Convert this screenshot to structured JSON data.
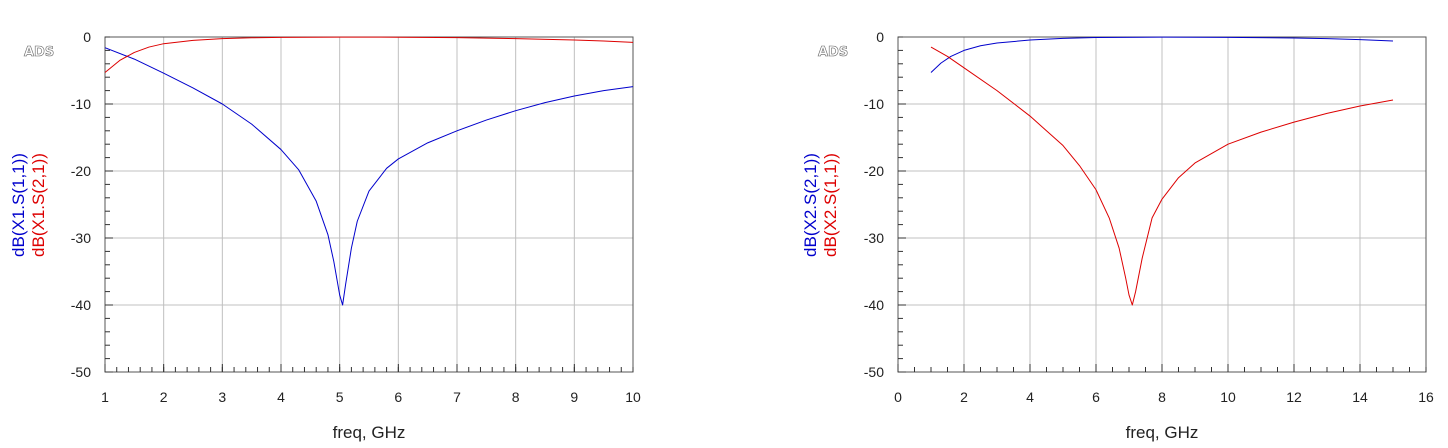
{
  "chart_data": [
    {
      "type": "line",
      "logo": "ADS",
      "xlabel": "freq, GHz",
      "xlim": [
        1,
        10
      ],
      "ylim": [
        -50,
        0
      ],
      "xticks": [
        1,
        2,
        3,
        4,
        5,
        6,
        7,
        8,
        9,
        10
      ],
      "yticks": [
        0,
        -10,
        -20,
        -30,
        -40,
        -50
      ],
      "grid": true,
      "ylabels": [
        {
          "text": "dB(X1.S(1,1))",
          "color": "#0000cc"
        },
        {
          "text": "dB(X1.S(2,1))",
          "color": "#dd0000"
        }
      ],
      "series": [
        {
          "name": "dB(X1.S(1,1))",
          "color": "#0000cc",
          "x": [
            1.0,
            1.5,
            2.0,
            2.5,
            3.0,
            3.5,
            4.0,
            4.3,
            4.6,
            4.8,
            4.9,
            5.0,
            5.05,
            5.1,
            5.2,
            5.3,
            5.5,
            5.8,
            6.0,
            6.5,
            7.0,
            7.5,
            8.0,
            8.5,
            9.0,
            9.5,
            10.0
          ],
          "y": [
            -1.6,
            -3.3,
            -5.4,
            -7.6,
            -10.0,
            -13.0,
            -16.8,
            -19.8,
            -24.5,
            -29.5,
            -33.5,
            -38.5,
            -40.0,
            -37.0,
            -31.5,
            -27.5,
            -23.0,
            -19.6,
            -18.2,
            -15.8,
            -14.0,
            -12.4,
            -11.0,
            -9.8,
            -8.8,
            -8.0,
            -7.4
          ]
        },
        {
          "name": "dB(X1.S(2,1))",
          "color": "#dd0000",
          "x": [
            1.0,
            1.25,
            1.5,
            1.75,
            2.0,
            2.5,
            3.0,
            3.5,
            4.0,
            5.0,
            6.0,
            7.0,
            8.0,
            9.0,
            9.5,
            10.0
          ],
          "y": [
            -5.3,
            -3.5,
            -2.3,
            -1.5,
            -1.0,
            -0.5,
            -0.25,
            -0.12,
            -0.05,
            -0.01,
            -0.03,
            -0.1,
            -0.25,
            -0.45,
            -0.6,
            -0.8
          ]
        }
      ]
    },
    {
      "type": "line",
      "logo": "ADS",
      "xlabel": "freq, GHz",
      "xlim": [
        0,
        16
      ],
      "ylim": [
        -50,
        0
      ],
      "xticks": [
        0,
        2,
        4,
        6,
        8,
        10,
        12,
        14,
        16
      ],
      "yticks": [
        0,
        -10,
        -20,
        -30,
        -40,
        -50
      ],
      "grid": true,
      "ylabels": [
        {
          "text": "dB(X2.S(2,1))",
          "color": "#0000cc"
        },
        {
          "text": "dB(X2.S(1,1))",
          "color": "#dd0000"
        }
      ],
      "series": [
        {
          "name": "dB(X2.S(2,1))",
          "color": "#0000cc",
          "x": [
            1.0,
            1.3,
            1.6,
            2.0,
            2.5,
            3.0,
            4.0,
            5.0,
            6.0,
            8.0,
            10.0,
            12.0,
            13.0,
            14.0,
            15.0
          ],
          "y": [
            -5.3,
            -3.9,
            -2.9,
            -2.0,
            -1.3,
            -0.9,
            -0.45,
            -0.2,
            -0.08,
            -0.01,
            -0.05,
            -0.15,
            -0.25,
            -0.4,
            -0.6
          ]
        },
        {
          "name": "dB(X2.S(1,1))",
          "color": "#dd0000",
          "x": [
            1.0,
            1.5,
            2.0,
            3.0,
            4.0,
            5.0,
            5.5,
            6.0,
            6.4,
            6.7,
            6.9,
            7.0,
            7.1,
            7.2,
            7.4,
            7.7,
            8.0,
            8.5,
            9.0,
            10.0,
            11.0,
            12.0,
            13.0,
            14.0,
            15.0
          ],
          "y": [
            -1.5,
            -2.9,
            -4.6,
            -8.0,
            -11.8,
            -16.2,
            -19.2,
            -22.8,
            -27.0,
            -31.5,
            -36.0,
            -38.5,
            -40.0,
            -38.0,
            -33.0,
            -27.0,
            -24.2,
            -21.0,
            -18.8,
            -16.0,
            -14.2,
            -12.7,
            -11.4,
            -10.3,
            -9.4
          ]
        }
      ]
    }
  ]
}
